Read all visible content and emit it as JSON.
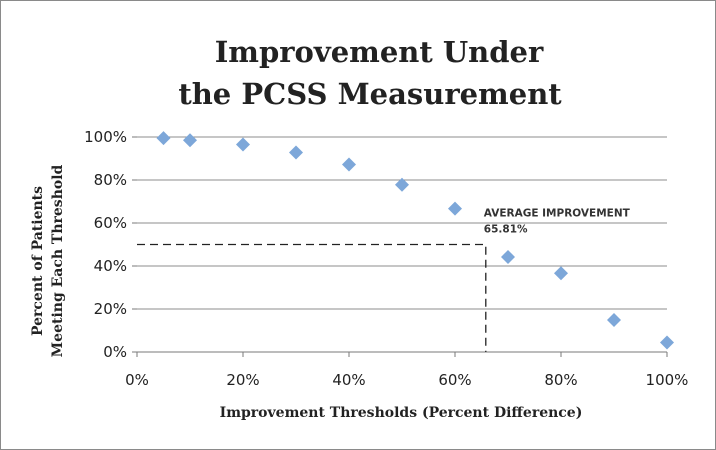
{
  "chart_data": {
    "type": "scatter",
    "title_lines": [
      "Improvement Under",
      "the PCSS Measurement"
    ],
    "xlabel": "Improvement Thresholds (Percent Difference)",
    "ylabel_lines": [
      "Percent of Patients",
      "Meeting Each Threshold"
    ],
    "xlim": [
      0,
      100
    ],
    "ylim": [
      0,
      100
    ],
    "x_ticks": [
      0,
      20,
      40,
      60,
      80,
      100
    ],
    "y_ticks": [
      0,
      20,
      40,
      60,
      80,
      100
    ],
    "x_tick_labels": [
      "0%",
      "20%",
      "40%",
      "60%",
      "80%",
      "100%"
    ],
    "y_tick_labels": [
      "0%",
      "20%",
      "40%",
      "60%",
      "80%",
      "100%"
    ],
    "grid": "horizontal",
    "legend": "none",
    "marker": "diamond",
    "marker_color": "#7da7d9",
    "points": [
      {
        "x": 5,
        "y": 99.5
      },
      {
        "x": 10,
        "y": 98.5
      },
      {
        "x": 20,
        "y": 96.5
      },
      {
        "x": 30,
        "y": 92.8
      },
      {
        "x": 40,
        "y": 87.2
      },
      {
        "x": 50,
        "y": 77.8
      },
      {
        "x": 60,
        "y": 66.7
      },
      {
        "x": 70,
        "y": 44.2
      },
      {
        "x": 80,
        "y": 36.6
      },
      {
        "x": 90,
        "y": 14.9
      },
      {
        "x": 100,
        "y": 4.4
      }
    ],
    "annotation": {
      "label": "AVERAGE IMPROVEMENT",
      "value_label": "65.81%",
      "x": 65.81,
      "y": 50
    }
  }
}
